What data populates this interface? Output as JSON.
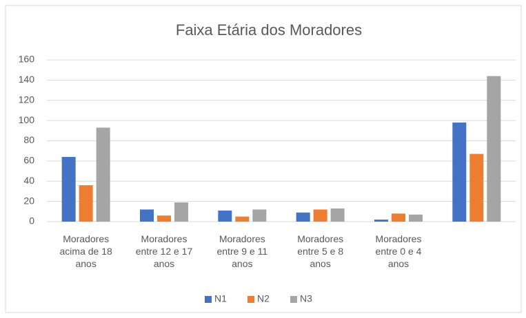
{
  "chart_data": {
    "type": "bar",
    "title": "Faixa Etária dos Moradores",
    "categories": [
      "Moradores acima de 18 anos",
      "Moradores entre 12 e 17 anos",
      "Moradores entre 9 e 11 anos",
      "Moradores entre 5 e 8 anos",
      "Moradores entre 0 e 4 anos",
      null
    ],
    "series": [
      {
        "name": "N1",
        "color": "#4472c4",
        "values": [
          64,
          12,
          11,
          9,
          2,
          98
        ]
      },
      {
        "name": "N2",
        "color": "#ed7d31",
        "values": [
          36,
          6,
          5,
          12,
          8,
          67
        ]
      },
      {
        "name": "N3",
        "color": "#a5a5a5",
        "values": [
          93,
          19,
          12,
          13,
          7,
          144
        ]
      }
    ],
    "ylim": [
      0,
      160
    ],
    "yticks": [
      0,
      20,
      40,
      60,
      80,
      100,
      120,
      140,
      160
    ],
    "grid": true,
    "legend": "bottom"
  }
}
